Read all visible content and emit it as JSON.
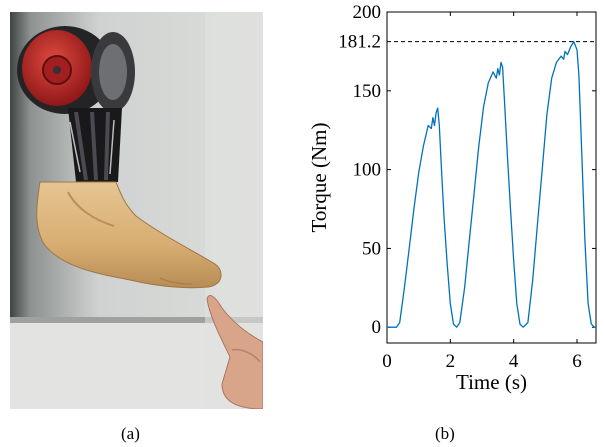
{
  "panel_a": {
    "label": "(a)",
    "colors": {
      "wall": "#d3d5d3",
      "wall_shadow": "#5c5f5d",
      "motor_red": "#c82a2a",
      "frame_dark": "#1d1d1f",
      "foot_beige": "#d8b27a",
      "skin": "#d9a58a"
    }
  },
  "panel_b": {
    "label": "(b)"
  },
  "chart_data": {
    "type": "line",
    "title": "",
    "xlabel": "Time (s)",
    "ylabel": "Torque (Nm)",
    "xlim": [
      0,
      6.6
    ],
    "ylim": [
      -10,
      200
    ],
    "xticks": [
      0,
      2,
      4,
      6
    ],
    "yticks": [
      0,
      50,
      100,
      150,
      200
    ],
    "grid": false,
    "legend": "none",
    "line_color": "#0072bd",
    "annotation": {
      "label": "181.2",
      "value": 181.2,
      "style": "dashed"
    },
    "series": [
      {
        "x": [
          0,
          0.15,
          0.3,
          0.4,
          0.55,
          0.7,
          0.85,
          1.0,
          1.15,
          1.3,
          1.4,
          1.45,
          1.5,
          1.55,
          1.6,
          1.65,
          1.72,
          1.8,
          1.9,
          2.0,
          2.1,
          2.2,
          2.3,
          2.45,
          2.6,
          2.75,
          2.9,
          3.05,
          3.2,
          3.35,
          3.45,
          3.5,
          3.55,
          3.6,
          3.65,
          3.72,
          3.8,
          3.9,
          4.0,
          4.1,
          4.2,
          4.3,
          4.45,
          4.6,
          4.75,
          4.9,
          5.05,
          5.2,
          5.35,
          5.5,
          5.58,
          5.62,
          5.7,
          5.8,
          5.9,
          6.0,
          6.06,
          6.15,
          6.25,
          6.35,
          6.45,
          6.55,
          6.6
        ],
        "y": [
          0,
          0,
          0,
          3,
          25,
          50,
          75,
          98,
          115,
          128,
          126,
          133,
          128,
          136,
          139,
          128,
          100,
          70,
          40,
          15,
          2,
          0,
          3,
          25,
          55,
          85,
          115,
          140,
          155,
          162,
          158,
          164,
          160,
          168,
          165,
          140,
          110,
          75,
          42,
          15,
          2,
          0,
          3,
          30,
          65,
          100,
          135,
          158,
          168,
          172,
          170,
          175,
          173,
          178,
          181.2,
          176,
          160,
          110,
          55,
          15,
          2,
          0,
          0
        ]
      }
    ]
  }
}
